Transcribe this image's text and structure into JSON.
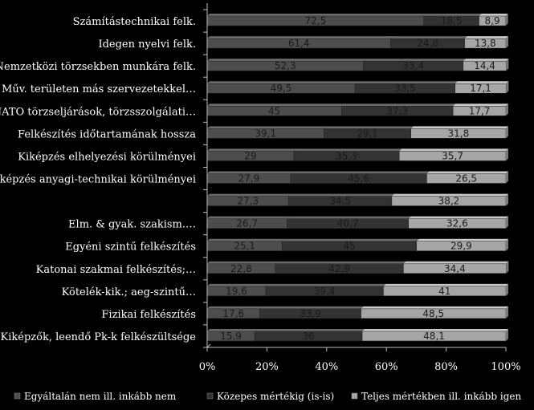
{
  "chart_data": {
    "type": "bar",
    "stacked": true,
    "orientation": "horizontal",
    "percent": true,
    "categories": [
      "Számítástechnikai felk.",
      "Idegen nyelvi felk.",
      "Nemzetközi törzsekben munkára felk.",
      "Műv. területen más szervezetekkel…",
      "NATO törzseljárások, törzsszolgálati…",
      "Felkészítés időtartamának hossza",
      "Kiképzés elhelyezési körülményei",
      "Kiképzés anyagi-technikai körülményei",
      "",
      "Elm. & gyak. szakism.…",
      "Egyéni szintű felkészítés",
      "Katonai szakmai felkészítés;…",
      "Kötelék-kik.; aeg-szintű…",
      "Fizikai felkészítés",
      "Kiképzők, leendő Pk-k felkészültsége"
    ],
    "series": [
      {
        "name": "Egyáltalán nem ill. inkább nem",
        "color": "#4d4d4d",
        "values": [
          "72,5",
          "61,4",
          "52,3",
          "49,5",
          "45",
          "39,1",
          "29",
          "27,9",
          "27,3",
          "26,7",
          "25,1",
          "22,8",
          "19,6",
          "17,6",
          "15,9"
        ]
      },
      {
        "name": "Közepes mértékig (is-is)",
        "color": "#333333",
        "values": [
          "18,5",
          "24,8",
          "33,4",
          "33,5",
          "37,3",
          "29,1",
          "35,3",
          "45,6",
          "34,5",
          "40,7",
          "45",
          "42,9",
          "39,4",
          "33,9",
          "36"
        ]
      },
      {
        "name": "Teljes mértékben ill. inkább igen",
        "color": "#a6a6a6",
        "values": [
          "8,9",
          "13,8",
          "14,4",
          "17,1",
          "17,7",
          "31,8",
          "35,7",
          "26,5",
          "38,2",
          "32,6",
          "29,9",
          "34,4",
          "41",
          "48,5",
          "48,1"
        ]
      }
    ],
    "xticks": [
      "0%",
      "20%",
      "40%",
      "60%",
      "80%",
      "100%"
    ],
    "xlim": [
      0,
      100
    ],
    "grid": false,
    "legend": "bottom"
  }
}
